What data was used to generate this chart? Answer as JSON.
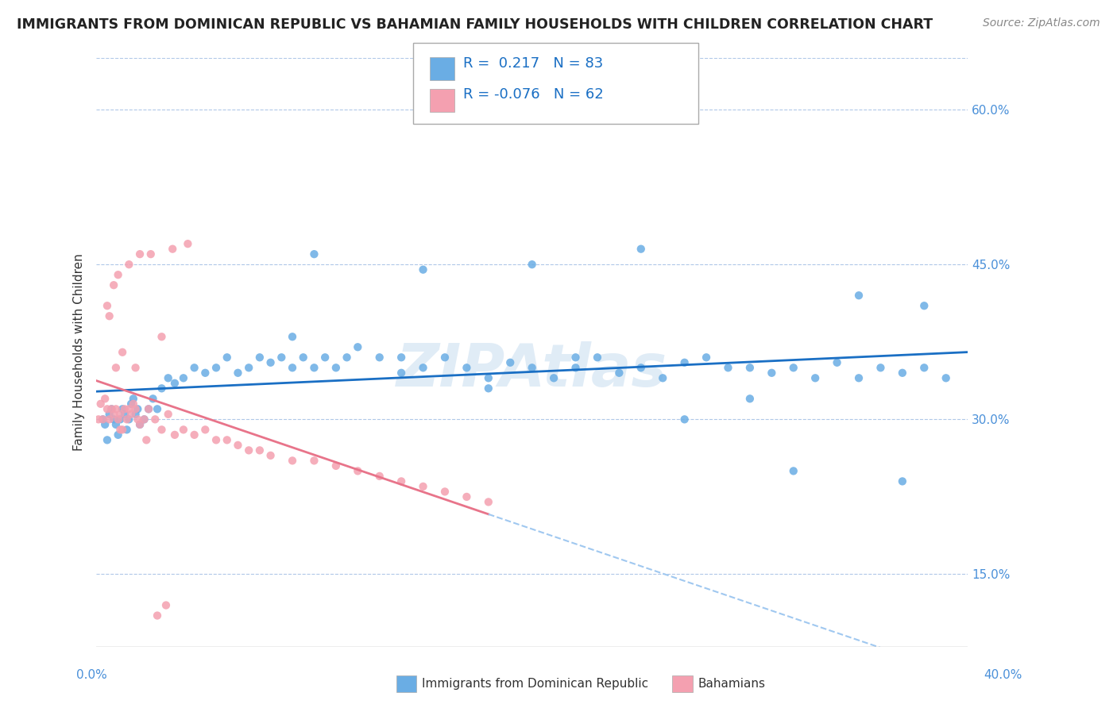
{
  "title": "IMMIGRANTS FROM DOMINICAN REPUBLIC VS BAHAMIAN FAMILY HOUSEHOLDS WITH CHILDREN CORRELATION CHART",
  "source": "Source: ZipAtlas.com",
  "ylabel": "Family Households with Children",
  "legend_label1": "Immigrants from Dominican Republic",
  "legend_label2": "Bahamians",
  "R1": 0.217,
  "N1": 83,
  "R2": -0.076,
  "N2": 62,
  "xlim": [
    0.0,
    40.0
  ],
  "ylim": [
    8.0,
    65.0
  ],
  "yticks": [
    15.0,
    30.0,
    45.0,
    60.0
  ],
  "color_blue": "#6aade4",
  "color_pink": "#f4a0b0",
  "trend_color_blue": "#1a6fc4",
  "trend_color_pink": "#e8748a",
  "trend_color_dashed": "#a0c8f0",
  "watermark": "ZIPAtlas",
  "blue_x": [
    0.3,
    0.4,
    0.5,
    0.6,
    0.7,
    0.8,
    0.9,
    1.0,
    1.1,
    1.2,
    1.3,
    1.4,
    1.5,
    1.6,
    1.7,
    1.8,
    1.9,
    2.0,
    2.2,
    2.4,
    2.6,
    2.8,
    3.0,
    3.3,
    3.6,
    4.0,
    4.5,
    5.0,
    5.5,
    6.0,
    6.5,
    7.0,
    7.5,
    8.0,
    8.5,
    9.0,
    9.5,
    10.0,
    10.5,
    11.0,
    11.5,
    12.0,
    13.0,
    14.0,
    15.0,
    16.0,
    17.0,
    18.0,
    19.0,
    20.0,
    21.0,
    22.0,
    23.0,
    24.0,
    25.0,
    26.0,
    27.0,
    28.0,
    29.0,
    30.0,
    31.0,
    32.0,
    33.0,
    34.0,
    35.0,
    36.0,
    37.0,
    38.0,
    39.0,
    10.0,
    15.0,
    20.0,
    25.0,
    30.0,
    35.0,
    38.0,
    14.0,
    9.0,
    18.0,
    22.0,
    27.0,
    32.0,
    37.0
  ],
  "blue_y": [
    30.0,
    29.5,
    28.0,
    30.5,
    31.0,
    30.0,
    29.5,
    28.5,
    30.0,
    31.0,
    30.5,
    29.0,
    30.0,
    31.5,
    32.0,
    30.5,
    31.0,
    29.5,
    30.0,
    31.0,
    32.0,
    31.0,
    33.0,
    34.0,
    33.5,
    34.0,
    35.0,
    34.5,
    35.0,
    36.0,
    34.5,
    35.0,
    36.0,
    35.5,
    36.0,
    35.0,
    36.0,
    35.0,
    36.0,
    35.0,
    36.0,
    37.0,
    36.0,
    34.5,
    35.0,
    36.0,
    35.0,
    34.0,
    35.5,
    35.0,
    34.0,
    35.0,
    36.0,
    34.5,
    35.0,
    34.0,
    35.5,
    36.0,
    35.0,
    35.0,
    34.5,
    35.0,
    34.0,
    35.5,
    34.0,
    35.0,
    34.5,
    35.0,
    34.0,
    46.0,
    44.5,
    45.0,
    46.5,
    32.0,
    42.0,
    41.0,
    36.0,
    38.0,
    33.0,
    36.0,
    30.0,
    25.0,
    24.0
  ],
  "pink_x": [
    0.1,
    0.2,
    0.3,
    0.4,
    0.5,
    0.6,
    0.7,
    0.8,
    0.9,
    1.0,
    1.1,
    1.2,
    1.3,
    1.4,
    1.5,
    1.6,
    1.7,
    1.8,
    1.9,
    2.0,
    2.2,
    2.4,
    2.7,
    3.0,
    3.3,
    3.6,
    4.0,
    4.5,
    5.0,
    5.5,
    6.0,
    6.5,
    7.0,
    7.5,
    8.0,
    9.0,
    10.0,
    11.0,
    12.0,
    13.0,
    14.0,
    15.0,
    16.0,
    17.0,
    18.0,
    3.5,
    4.2,
    1.5,
    2.0,
    2.5,
    0.8,
    1.0,
    0.5,
    0.6,
    3.0,
    1.2,
    0.9,
    2.8,
    3.2,
    1.8,
    2.3,
    1.1
  ],
  "pink_y": [
    30.0,
    31.5,
    30.0,
    32.0,
    31.0,
    30.0,
    31.0,
    30.5,
    31.0,
    30.0,
    30.5,
    29.0,
    31.0,
    30.0,
    31.0,
    30.5,
    31.5,
    31.0,
    30.0,
    29.5,
    30.0,
    31.0,
    30.0,
    29.0,
    30.5,
    28.5,
    29.0,
    28.5,
    29.0,
    28.0,
    28.0,
    27.5,
    27.0,
    27.0,
    26.5,
    26.0,
    26.0,
    25.5,
    25.0,
    24.5,
    24.0,
    23.5,
    23.0,
    22.5,
    22.0,
    46.5,
    47.0,
    45.0,
    46.0,
    46.0,
    43.0,
    44.0,
    41.0,
    40.0,
    38.0,
    36.5,
    35.0,
    11.0,
    12.0,
    35.0,
    28.0,
    29.0
  ]
}
